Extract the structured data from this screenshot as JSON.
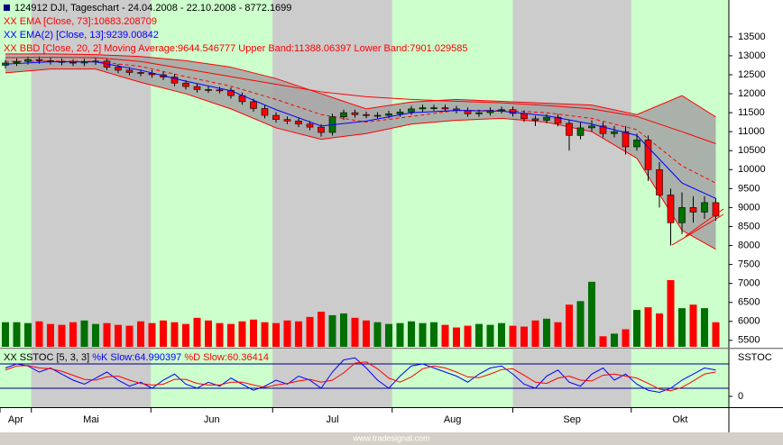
{
  "chart_data": {
    "type": "candlestick",
    "header": "124912 DJI, Tageschart - 24.04.2008 - 22.10.2008 - 8772.1699",
    "up_color": "#007000",
    "down_color": "#ff0000",
    "open": [
      12750,
      12810,
      12850,
      12900,
      12870,
      12850,
      12830,
      12810,
      12840,
      12860,
      12700,
      12620,
      12560,
      12540,
      12500,
      12440,
      12280,
      12190,
      12110,
      12100,
      12090,
      11950,
      11790,
      11610,
      11430,
      11320,
      11280,
      11200,
      11120,
      10980,
      11390,
      11500,
      11450,
      11430,
      11430,
      11470,
      11520,
      11600,
      11630,
      11630,
      11600,
      11560,
      11470,
      11500,
      11560,
      11580,
      11480,
      11340,
      11300,
      11380,
      11220,
      10900,
      11100,
      11150,
      10950,
      11000,
      10600,
      10780,
      10000,
      9330,
      8600,
      9000,
      8880,
      9130
    ],
    "high": [
      12890,
      12930,
      12980,
      12980,
      12950,
      12930,
      12910,
      12920,
      12940,
      12940,
      12780,
      12700,
      12640,
      12620,
      12580,
      12520,
      12360,
      12270,
      12190,
      12180,
      12170,
      12030,
      11870,
      11690,
      11510,
      11400,
      11360,
      11280,
      11200,
      11470,
      11580,
      11580,
      11530,
      11510,
      11550,
      11600,
      11680,
      11710,
      11710,
      11710,
      11680,
      11640,
      11580,
      11640,
      11660,
      11660,
      11560,
      11420,
      11460,
      11460,
      11300,
      11250,
      11300,
      11250,
      11150,
      11150,
      10950,
      10900,
      10200,
      9500,
      9400,
      9300,
      9300,
      9250
    ],
    "low": [
      12670,
      12730,
      12770,
      12790,
      12770,
      12750,
      12730,
      12730,
      12760,
      12620,
      12540,
      12480,
      12460,
      12420,
      12360,
      12200,
      12110,
      12030,
      12020,
      12010,
      11870,
      11710,
      11530,
      11350,
      11240,
      11200,
      11120,
      11040,
      10870,
      10900,
      11310,
      11370,
      11350,
      11350,
      11350,
      11390,
      11440,
      11520,
      11550,
      11520,
      11480,
      11390,
      11390,
      11420,
      11480,
      11400,
      11260,
      11150,
      11220,
      11140,
      10500,
      10800,
      11000,
      10850,
      10850,
      10400,
      10500,
      9700,
      9000,
      8000,
      8300,
      8600,
      8700,
      8650
    ],
    "close": [
      12810,
      12850,
      12900,
      12870,
      12850,
      12830,
      12810,
      12840,
      12860,
      12700,
      12620,
      12560,
      12540,
      12500,
      12440,
      12280,
      12190,
      12110,
      12100,
      12090,
      11950,
      11790,
      11610,
      11430,
      11320,
      11280,
      11200,
      11120,
      10980,
      11390,
      11500,
      11450,
      11430,
      11430,
      11470,
      11520,
      11600,
      11630,
      11630,
      11600,
      11560,
      11470,
      11500,
      11560,
      11580,
      11480,
      11340,
      11300,
      11380,
      11220,
      10900,
      11100,
      11150,
      10950,
      11000,
      10600,
      10780,
      10000,
      9330,
      8600,
      9000,
      8880,
      9130,
      8772
    ],
    "ylim": [
      5330,
      14470
    ],
    "yticks": [
      5500,
      6000,
      6500,
      7000,
      7500,
      8000,
      8500,
      9000,
      9500,
      10000,
      10500,
      11000,
      11500,
      12000,
      12500,
      13000,
      13500
    ],
    "overlays": [
      {
        "name": "XX EMA [Close, 73]:10683.208709",
        "color": "#ff0000",
        "x": [
          0,
          4,
          8,
          12,
          16,
          20,
          24,
          28,
          32,
          36,
          40,
          44,
          48,
          52,
          56,
          60,
          63
        ],
        "values": [
          12950,
          12960,
          12950,
          12850,
          12650,
          12450,
          12250,
          12050,
          11920,
          11850,
          11800,
          11760,
          11690,
          11600,
          11400,
          11000,
          10683
        ]
      },
      {
        "name": "XX EMA(2) [Close, 13]:9239.00842",
        "color": "#0000ff",
        "x": [
          0,
          4,
          8,
          12,
          16,
          20,
          24,
          28,
          32,
          36,
          40,
          44,
          48,
          52,
          56,
          60,
          63
        ],
        "values": [
          12780,
          12840,
          12840,
          12620,
          12330,
          12080,
          11580,
          11150,
          11280,
          11500,
          11560,
          11540,
          11420,
          11200,
          10900,
          9650,
          9239
        ]
      }
    ],
    "bands": {
      "name": "XX BBD [Close, 20, 2] Moving Average:9644.546777 Upper Band:11388.06397 Lower Band:7901.029585",
      "color": "#ff0000",
      "fill": "#a3a3a3",
      "x": [
        0,
        4,
        8,
        12,
        16,
        20,
        24,
        28,
        32,
        36,
        40,
        44,
        48,
        52,
        56,
        60,
        63
      ],
      "middle": [
        12850,
        12860,
        12850,
        12720,
        12450,
        12200,
        11850,
        11450,
        11250,
        11400,
        11560,
        11560,
        11500,
        11350,
        11050,
        10100,
        9645
      ],
      "upper": [
        13050,
        13050,
        13030,
        12980,
        12870,
        12700,
        12400,
        12000,
        11600,
        11780,
        11850,
        11800,
        11750,
        11700,
        11450,
        11950,
        11388
      ],
      "lower": [
        12550,
        12650,
        12650,
        12300,
        12000,
        11600,
        11100,
        10800,
        10950,
        11200,
        11300,
        11350,
        11250,
        11000,
        10300,
        8400,
        7901
      ]
    },
    "volume": [
      28,
      28,
      27,
      29,
      26,
      25,
      28,
      30,
      26,
      27,
      25,
      24,
      29,
      27,
      30,
      28,
      26,
      33,
      30,
      27,
      26,
      29,
      31,
      28,
      27,
      30,
      29,
      34,
      40,
      36,
      38,
      33,
      30,
      28,
      26,
      27,
      29,
      27,
      28,
      25,
      22,
      24,
      26,
      25,
      27,
      24,
      23,
      30,
      32,
      28,
      48,
      52,
      74,
      12,
      15,
      20,
      42,
      45,
      38,
      76,
      44,
      48,
      44,
      28
    ],
    "vlim": [
      0,
      80
    ],
    "stochastic": {
      "title": "XX SSTOC [5, 3, 3]",
      "axis_label": "SSTOC",
      "ylim": [
        -26.7,
        115.6
      ],
      "yticks": [
        0
      ],
      "levels": [
        20,
        80
      ],
      "level_color": "#000080",
      "series": [
        {
          "name": "%K Slow:64.990397",
          "color": "#0000ff",
          "values": [
            70,
            80,
            75,
            60,
            70,
            55,
            40,
            30,
            45,
            60,
            40,
            25,
            35,
            20,
            40,
            55,
            30,
            20,
            35,
            25,
            45,
            30,
            15,
            25,
            40,
            30,
            50,
            40,
            20,
            60,
            90,
            95,
            70,
            40,
            20,
            50,
            75,
            80,
            70,
            60,
            50,
            35,
            55,
            70,
            75,
            55,
            30,
            20,
            50,
            65,
            35,
            25,
            55,
            70,
            40,
            55,
            30,
            15,
            10,
            20,
            40,
            55,
            70,
            64.990397
          ]
        },
        {
          "name": "%D Slow:60.36414",
          "color": "#ff0000",
          "values": [
            65,
            75,
            76,
            70,
            68,
            62,
            52,
            42,
            40,
            48,
            50,
            40,
            32,
            28,
            30,
            42,
            42,
            32,
            28,
            28,
            35,
            35,
            28,
            22,
            28,
            32,
            38,
            42,
            35,
            40,
            58,
            82,
            85,
            68,
            45,
            35,
            48,
            68,
            75,
            70,
            60,
            48,
            46,
            55,
            66,
            68,
            52,
            35,
            32,
            45,
            50,
            40,
            38,
            52,
            55,
            50,
            45,
            32,
            18,
            14,
            22,
            38,
            55,
            60.36414
          ]
        }
      ]
    },
    "months": [
      {
        "label": "Apr",
        "start": -0.5
      },
      {
        "label": "Mai",
        "start": 2.3
      },
      {
        "label": "Jun",
        "start": 12.9
      },
      {
        "label": "Jul",
        "start": 23.7
      },
      {
        "label": "Aug",
        "start": 34.3
      },
      {
        "label": "Sep",
        "start": 45
      },
      {
        "label": "Okt",
        "start": 55.5
      }
    ],
    "band_colors": [
      "#ccffcc",
      "#cccccc"
    ],
    "watermark": "www.tradesignal.com"
  }
}
